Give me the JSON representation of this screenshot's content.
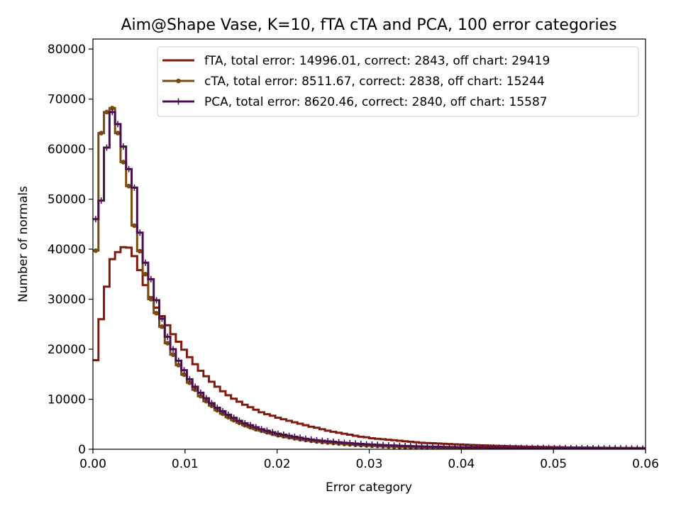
{
  "chart_data": {
    "type": "line",
    "title": "Aim@Shape Vase, K=10, fTA cTA and PCA, 100 error categories",
    "xlabel": "Error category",
    "ylabel": "Number of normals",
    "xlim": [
      0.0,
      0.06
    ],
    "ylim": [
      0,
      82000
    ],
    "x_ticks": [
      "0.00",
      "0.01",
      "0.02",
      "0.03",
      "0.04",
      "0.05",
      "0.06"
    ],
    "y_ticks": [
      "0",
      "10000",
      "20000",
      "30000",
      "40000",
      "50000",
      "60000",
      "70000",
      "80000"
    ],
    "grid": false,
    "legend_position": "upper-right",
    "bin_width": 0.0006,
    "series": [
      {
        "name": "fTA, total error: 14996.01, correct: 2843, off chart: 29419",
        "color": "#7f1a0f",
        "marker": "none",
        "values": [
          17800,
          26000,
          32500,
          38000,
          39400,
          40400,
          40300,
          38600,
          35800,
          32800,
          30400,
          28300,
          26600,
          24800,
          23000,
          21500,
          19900,
          18400,
          17000,
          15700,
          14600,
          13500,
          12500,
          11600,
          10800,
          10100,
          9500,
          8900,
          8400,
          7900,
          7400,
          7000,
          6700,
          6300,
          6000,
          5700,
          5400,
          5100,
          4800,
          4500,
          4300,
          4000,
          3700,
          3500,
          3300,
          3100,
          2900,
          2700,
          2500,
          2400,
          2200,
          2100,
          2000,
          1900,
          1800,
          1700,
          1600,
          1500,
          1400,
          1300,
          1250,
          1200,
          1150,
          1100,
          1050,
          1000,
          950,
          900,
          860,
          820,
          780,
          740,
          700,
          670,
          640,
          610,
          580,
          550,
          520,
          500,
          480,
          460,
          440,
          420,
          400,
          380,
          360,
          350,
          340,
          330,
          320,
          310,
          300,
          290,
          280,
          270,
          260,
          250,
          240,
          230
        ]
      },
      {
        "name": "cTA, total error: 8511.67, correct: 2838, off chart: 15244",
        "color": "#7a4a10",
        "marker": "dot",
        "values": [
          39700,
          63200,
          67400,
          68200,
          63200,
          57400,
          52600,
          44700,
          39600,
          35000,
          30000,
          27200,
          24500,
          21200,
          18900,
          16800,
          14900,
          13300,
          11900,
          10600,
          9600,
          8700,
          7800,
          7100,
          6400,
          5800,
          5300,
          4800,
          4400,
          4000,
          3700,
          3400,
          3100,
          2800,
          2600,
          2400,
          2200,
          2000,
          1850,
          1700,
          1550,
          1450,
          1350,
          1250,
          1150,
          1060,
          980,
          900,
          830,
          770,
          710,
          660,
          610,
          570,
          530,
          490,
          460,
          430,
          400,
          370,
          350,
          330,
          310,
          290,
          270,
          255,
          240,
          225,
          210,
          200,
          190,
          180,
          170,
          160,
          150,
          145,
          140,
          135,
          130,
          125,
          120,
          115,
          110,
          105,
          100,
          95,
          90,
          88,
          86,
          84,
          82,
          80,
          78,
          76,
          74,
          72,
          70,
          68,
          66,
          64
        ]
      },
      {
        "name": "PCA, total error: 8620.46, correct: 2840, off chart: 15587",
        "color": "#4a0f4f",
        "marker": "plus",
        "values": [
          46000,
          49700,
          60300,
          67400,
          65000,
          60500,
          56000,
          52300,
          43300,
          37300,
          34000,
          29800,
          26100,
          22500,
          20000,
          17700,
          15800,
          14000,
          12500,
          11300,
          10200,
          9200,
          8300,
          7600,
          6900,
          6300,
          5700,
          5200,
          4800,
          4400,
          4000,
          3700,
          3400,
          3100,
          2900,
          2700,
          2500,
          2300,
          2100,
          1950,
          1800,
          1700,
          1600,
          1500,
          1400,
          1300,
          1220,
          1140,
          1070,
          1000,
          940,
          880,
          830,
          780,
          740,
          700,
          660,
          620,
          590,
          560,
          530,
          510,
          490,
          470,
          450,
          430,
          410,
          395,
          380,
          365,
          350,
          340,
          330,
          320,
          310,
          300,
          290,
          280,
          270,
          262,
          255,
          248,
          242,
          236,
          230,
          224,
          218,
          212,
          206,
          200,
          195,
          190,
          185,
          180,
          175,
          170,
          165,
          160,
          155,
          150
        ]
      }
    ]
  }
}
